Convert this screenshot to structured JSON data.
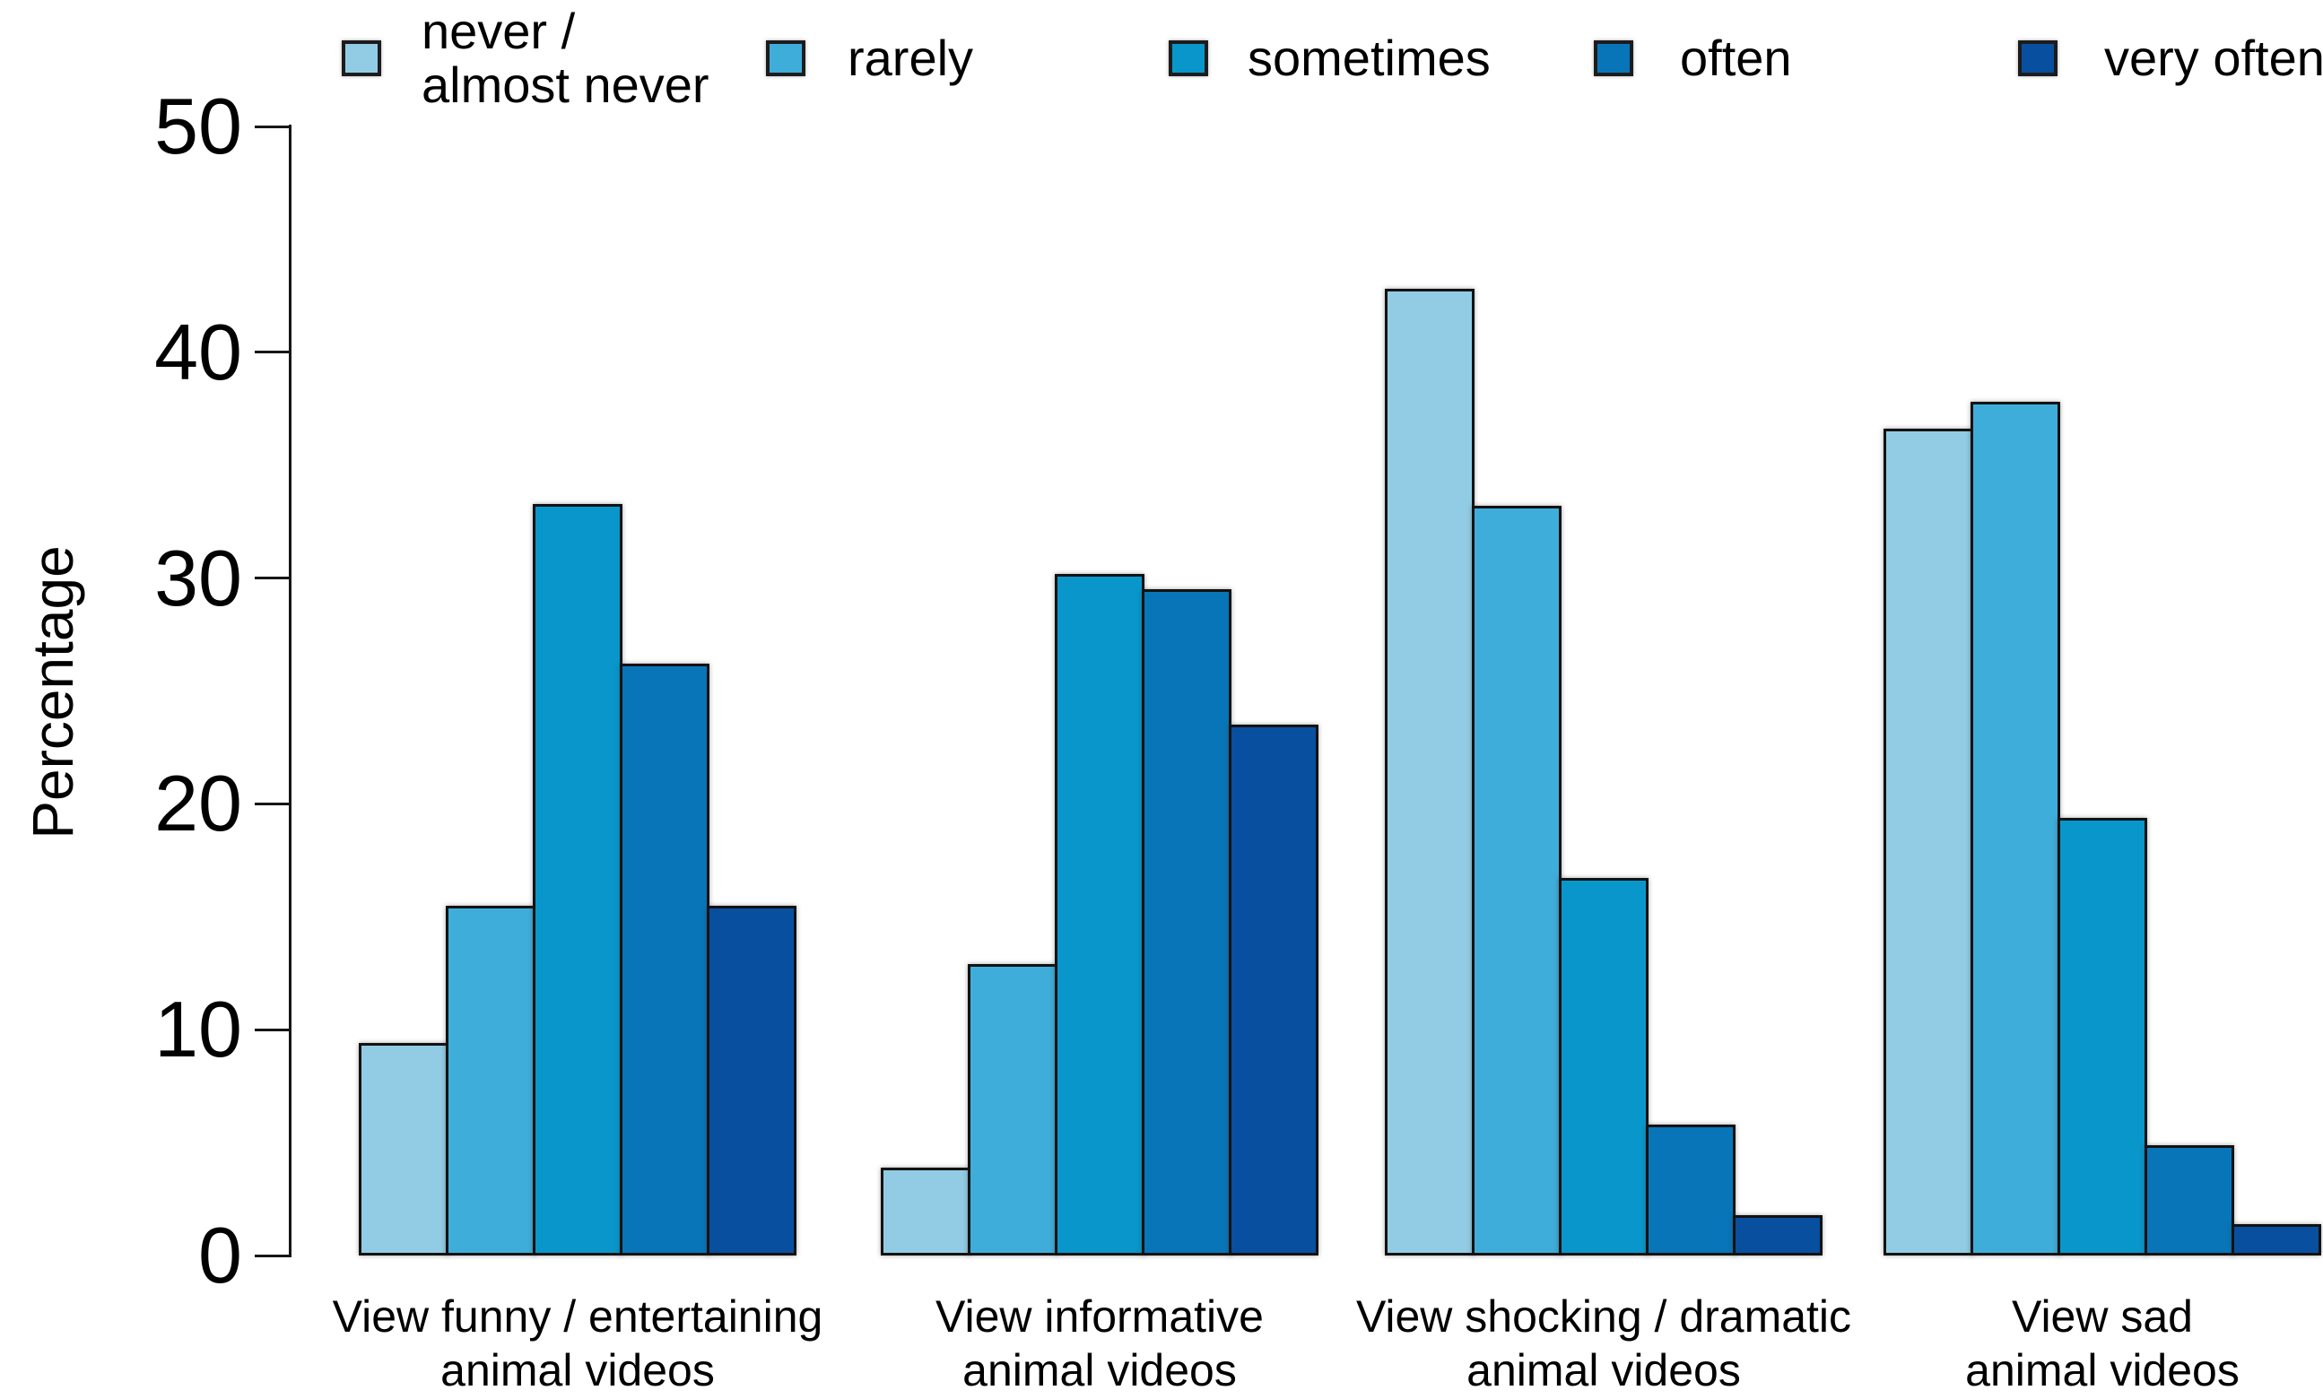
{
  "chart_data": {
    "type": "bar",
    "title": "",
    "ylabel": "Percentage",
    "xlabel": "",
    "ylim": [
      0,
      50
    ],
    "yticks": [
      0,
      10,
      20,
      30,
      40,
      50
    ],
    "grid": false,
    "legend_position": "top",
    "background_color": "#ffffff",
    "axis_color": "#161616",
    "bar_border_color": "#121212",
    "categories": [
      [
        "View funny / entertaining",
        "animal videos"
      ],
      [
        "View informative",
        "animal videos"
      ],
      [
        "View shocking / dramatic",
        "animal videos"
      ],
      [
        "View sad",
        "animal videos"
      ]
    ],
    "series": [
      {
        "name": "never / almost never",
        "legend_lines": [
          "never /",
          "almost never"
        ],
        "color": "#92CCE4",
        "values": [
          9.4,
          3.9,
          42.8,
          36.6
        ]
      },
      {
        "name": "rarely",
        "legend_lines": [
          "rarely"
        ],
        "color": "#3FADDA",
        "values": [
          15.5,
          12.9,
          33.2,
          37.8
        ]
      },
      {
        "name": "sometimes",
        "legend_lines": [
          "sometimes"
        ],
        "color": "#0997CB",
        "values": [
          33.3,
          30.2,
          16.7,
          19.4
        ]
      },
      {
        "name": "often",
        "legend_lines": [
          "often"
        ],
        "color": "#0875B9",
        "values": [
          26.2,
          29.5,
          5.8,
          4.9
        ]
      },
      {
        "name": "very often",
        "legend_lines": [
          "very often"
        ],
        "color": "#084F9F",
        "values": [
          15.5,
          23.5,
          1.8,
          1.4
        ]
      }
    ]
  }
}
